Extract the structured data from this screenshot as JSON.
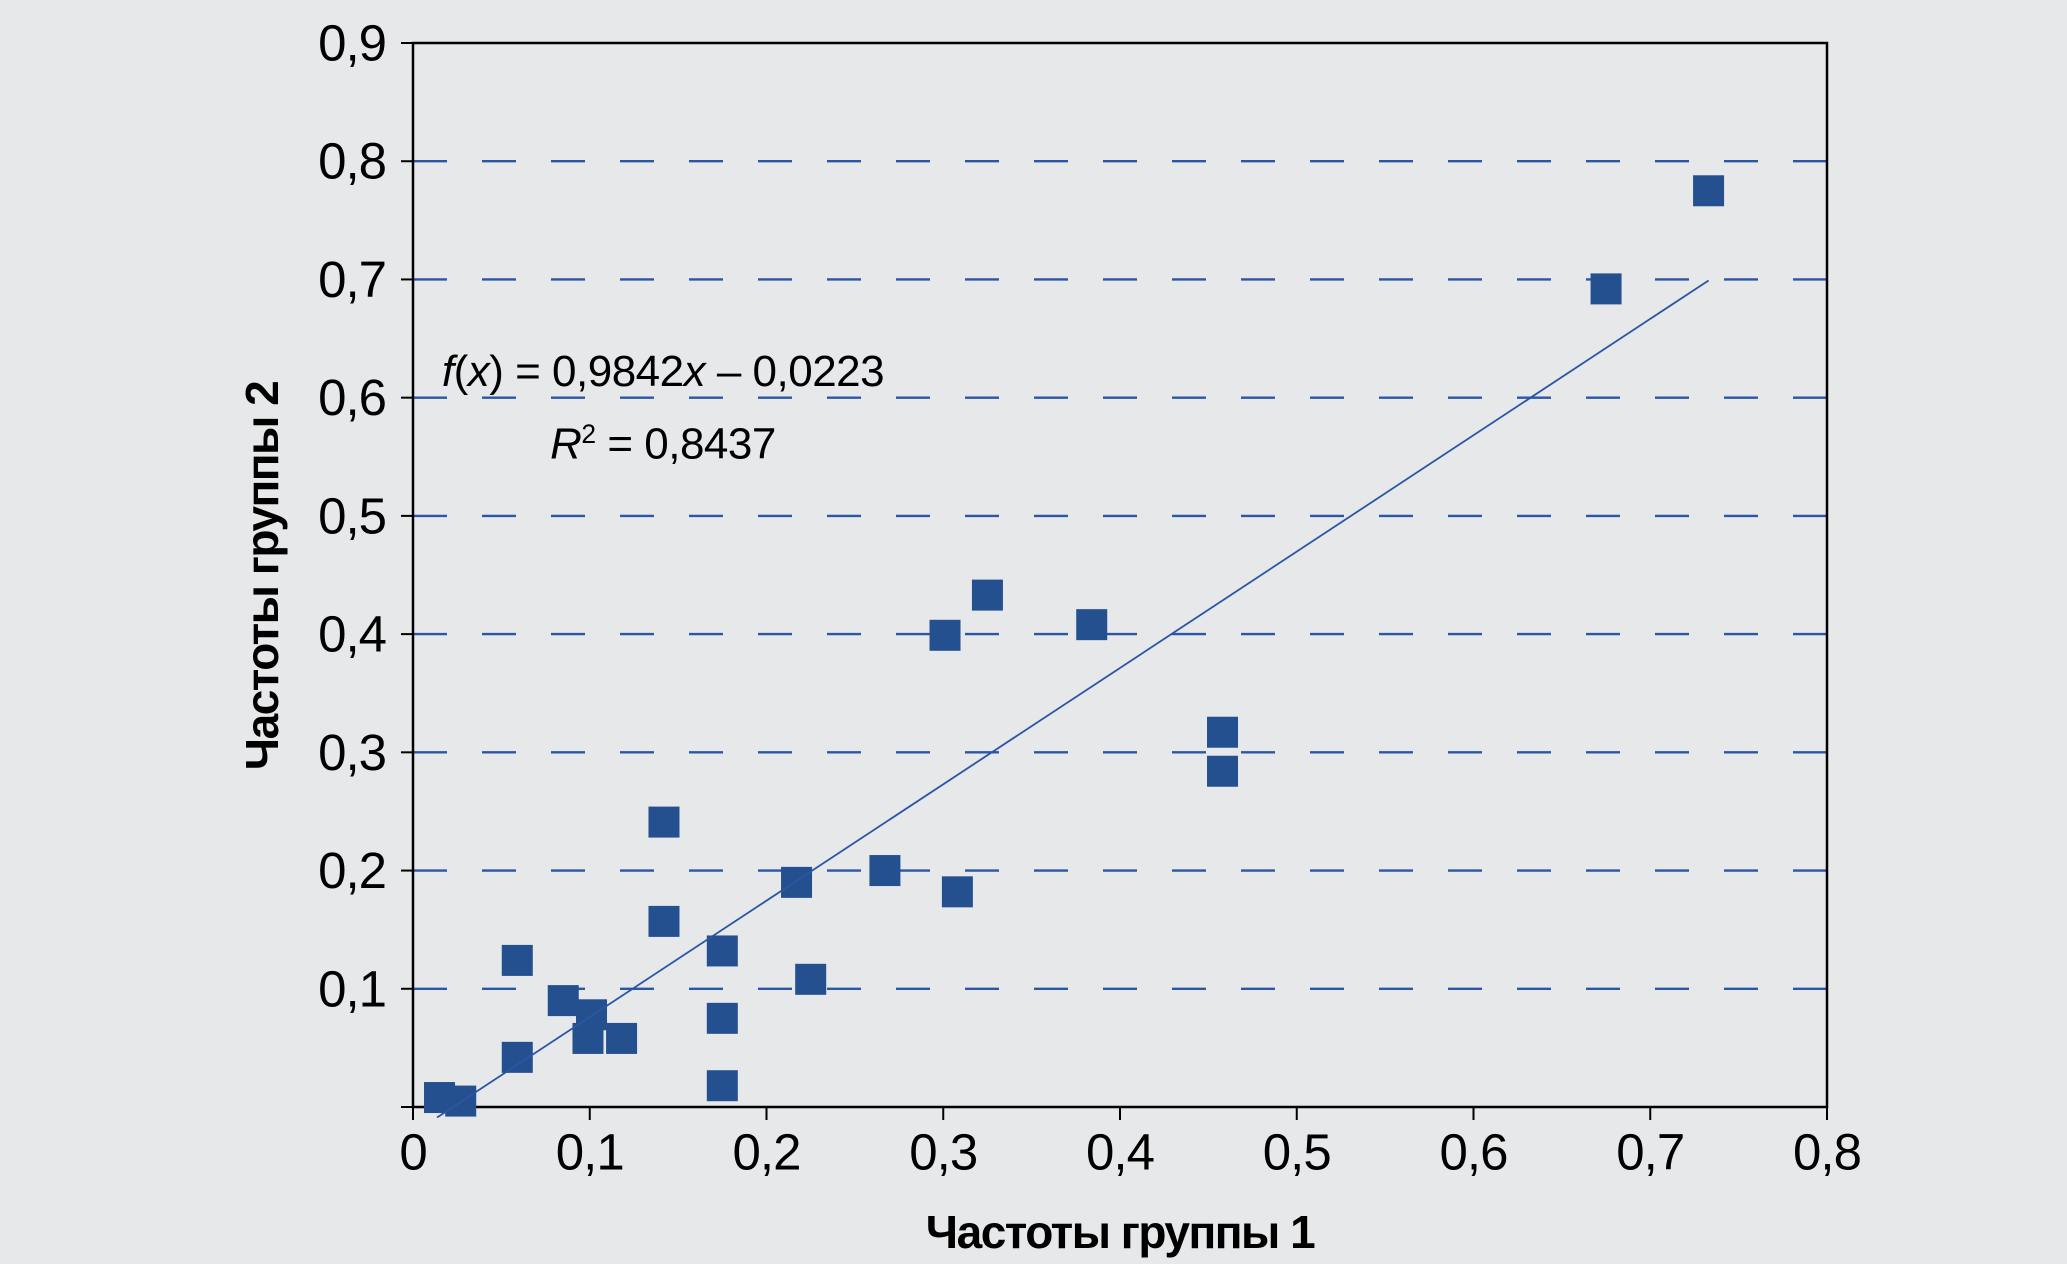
{
  "chart_data": {
    "type": "scatter",
    "title": "",
    "xlabel": "Частоты группы 1",
    "ylabel": "Частоты группы 2",
    "xlim": [
      0,
      0.8
    ],
    "ylim": [
      0,
      0.9
    ],
    "grid": "horizontal-dashed",
    "legend_position": "none",
    "marker_shape": "square",
    "marker_size_px": 31,
    "x_ticks": [
      {
        "v": 0.0,
        "label": "0"
      },
      {
        "v": 0.1,
        "label": "0,1"
      },
      {
        "v": 0.2,
        "label": "0,2"
      },
      {
        "v": 0.3,
        "label": "0,3"
      },
      {
        "v": 0.4,
        "label": "0,4"
      },
      {
        "v": 0.5,
        "label": "0,5"
      },
      {
        "v": 0.6,
        "label": "0,6"
      },
      {
        "v": 0.7,
        "label": "0,7"
      },
      {
        "v": 0.8,
        "label": "0,8"
      }
    ],
    "y_ticks": [
      {
        "v": 0.0,
        "label": ""
      },
      {
        "v": 0.1,
        "label": "0,1"
      },
      {
        "v": 0.2,
        "label": "0,2"
      },
      {
        "v": 0.3,
        "label": "0,3"
      },
      {
        "v": 0.4,
        "label": "0,4"
      },
      {
        "v": 0.5,
        "label": "0,5"
      },
      {
        "v": 0.6,
        "label": "0,6"
      },
      {
        "v": 0.7,
        "label": "0,7"
      },
      {
        "v": 0.8,
        "label": "0,8"
      },
      {
        "v": 0.9,
        "label": "0,9"
      }
    ],
    "grid_y_values": [
      0.1,
      0.2,
      0.3,
      0.4,
      0.5,
      0.6,
      0.7,
      0.8
    ],
    "points": [
      [
        0.015,
        0.008
      ],
      [
        0.027,
        0.005
      ],
      [
        0.059,
        0.124
      ],
      [
        0.059,
        0.042
      ],
      [
        0.085,
        0.09
      ],
      [
        0.101,
        0.078
      ],
      [
        0.099,
        0.058
      ],
      [
        0.118,
        0.058
      ],
      [
        0.142,
        0.241
      ],
      [
        0.142,
        0.157
      ],
      [
        0.175,
        0.132
      ],
      [
        0.175,
        0.075
      ],
      [
        0.175,
        0.018
      ],
      [
        0.217,
        0.19
      ],
      [
        0.225,
        0.108
      ],
      [
        0.267,
        0.2
      ],
      [
        0.308,
        0.182
      ],
      [
        0.301,
        0.399
      ],
      [
        0.325,
        0.433
      ],
      [
        0.384,
        0.408
      ],
      [
        0.458,
        0.317
      ],
      [
        0.458,
        0.284
      ],
      [
        0.675,
        0.692
      ],
      [
        0.733,
        0.775
      ]
    ],
    "trendline": {
      "slope": 0.9842,
      "intercept": -0.0223,
      "x_start": 0.0136,
      "x_end": 0.733
    },
    "annotation": {
      "line1": [
        {
          "t": "f",
          "s": "i"
        },
        {
          "t": "(",
          "s": "n"
        },
        {
          "t": "x",
          "s": "i"
        },
        {
          "t": ") = 0,9842",
          "s": "n"
        },
        {
          "t": "x",
          "s": "i"
        },
        {
          "t": " – 0,0223",
          "s": "n"
        }
      ],
      "line2": [
        {
          "t": "R",
          "s": "i"
        },
        {
          "t": "2",
          "s": "sup"
        },
        {
          "t": " = 0,8437",
          "s": "n"
        }
      ]
    },
    "colors": {
      "background": "#e7e8ea",
      "marker": "#24508f",
      "gridline": "#2b56a5",
      "trendline": "#2b56a5",
      "axis": "#000000",
      "text": "#000000"
    }
  }
}
